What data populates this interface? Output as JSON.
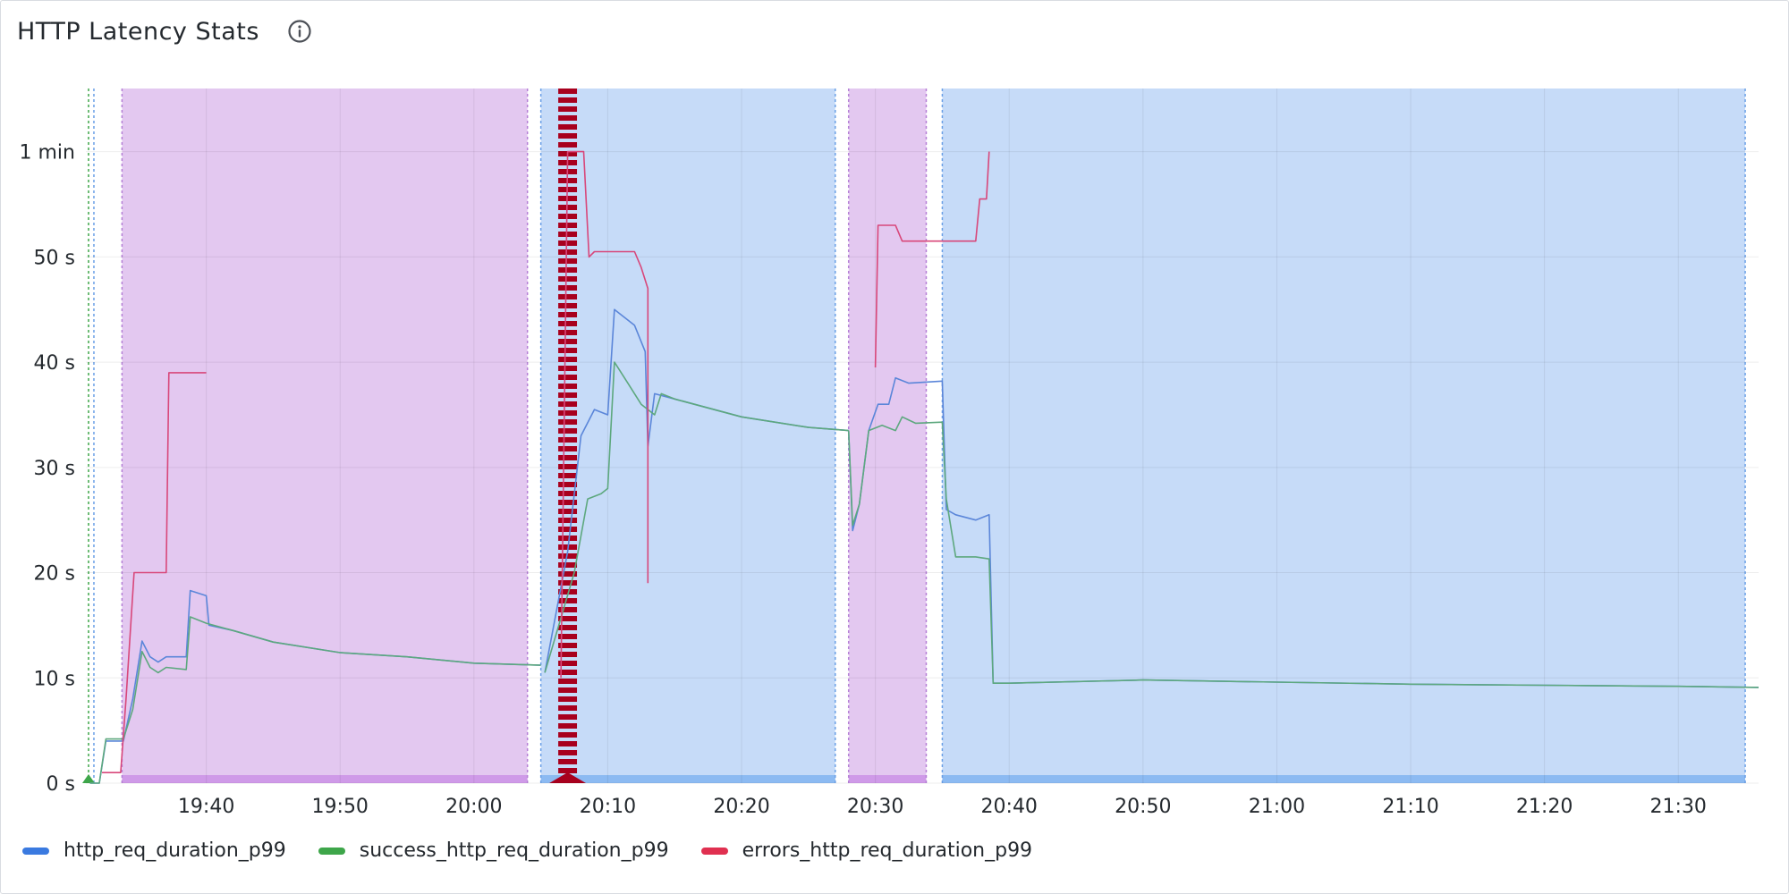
{
  "panel": {
    "title": "HTTP Latency Stats",
    "info_icon": "info-circle-icon"
  },
  "legend": [
    {
      "name": "http_req_duration_p99",
      "color": "#3a7ae0"
    },
    {
      "name": "success_http_req_duration_p99",
      "color": "#3ea64a"
    },
    {
      "name": "errors_http_req_duration_p99",
      "color": "#e03050"
    }
  ],
  "chart_data": {
    "type": "line",
    "title": "HTTP Latency Stats",
    "x_range": [
      "19:31",
      "21:36"
    ],
    "y_range_seconds": [
      0,
      66
    ],
    "x_ticks": [
      "19:40",
      "19:50",
      "20:00",
      "20:10",
      "20:20",
      "20:30",
      "20:40",
      "20:50",
      "21:00",
      "21:10",
      "21:20",
      "21:30"
    ],
    "y_ticks": [
      {
        "label": "0 s",
        "value": 0
      },
      {
        "label": "10 s",
        "value": 10
      },
      {
        "label": "20 s",
        "value": 20
      },
      {
        "label": "30 s",
        "value": 30
      },
      {
        "label": "40 s",
        "value": 40
      },
      {
        "label": "50 s",
        "value": 50
      },
      {
        "label": "1 min",
        "value": 60
      }
    ],
    "grid": true,
    "legend_position": "bottom-left",
    "regions": [
      {
        "kind": "test-run",
        "start": "19:33.7",
        "end": "20:04.0",
        "color": "#e3c8f0"
      },
      {
        "kind": "test-run",
        "start": "20:05.0",
        "end": "20:27.0",
        "color": "#c6dbf8"
      },
      {
        "kind": "test-run",
        "start": "20:28.0",
        "end": "20:33.8",
        "color": "#e3c8f0"
      },
      {
        "kind": "test-run",
        "start": "20:35.0",
        "end": "21:35.0",
        "color": "#c6dbf8"
      }
    ],
    "error_marker": {
      "start": "20:06.3",
      "end": "20:07.7",
      "color": "#a8001e"
    },
    "series": [
      {
        "name": "http_req_duration_p99",
        "color": "#3a7ae0",
        "segments": [
          [
            [
              "19:31.3",
              0
            ],
            [
              "19:32.0",
              0
            ],
            [
              "19:32.5",
              4
            ],
            [
              "19:33.8",
              4
            ],
            [
              "19:34.5",
              8
            ],
            [
              "19:35.2",
              13.5
            ],
            [
              "19:35.8",
              12
            ],
            [
              "19:36.4",
              11.5
            ],
            [
              "19:37.0",
              12
            ],
            [
              "19:38.5",
              12
            ],
            [
              "19:38.8",
              18.3
            ],
            [
              "19:40.0",
              17.8
            ],
            [
              "19:40.2",
              15
            ],
            [
              "19:42.0",
              14.5
            ],
            [
              "19:45.0",
              13.4
            ],
            [
              "19:50.0",
              12.4
            ],
            [
              "19:55.0",
              12
            ],
            [
              "20:00.0",
              11.4
            ],
            [
              "20:05.0",
              11.2
            ]
          ],
          [
            [
              "20:05.3",
              10.5
            ],
            [
              "20:07.0",
              22
            ],
            [
              "20:08.0",
              33
            ],
            [
              "20:09.0",
              35.5
            ],
            [
              "20:10.0",
              35
            ],
            [
              "20:10.5",
              45
            ],
            [
              "20:12.0",
              43.5
            ],
            [
              "20:12.8",
              41
            ],
            [
              "20:13.0",
              32
            ],
            [
              "20:13.5",
              37
            ],
            [
              "20:15.0",
              36.5
            ],
            [
              "20:20.0",
              34.8
            ],
            [
              "20:25.0",
              33.8
            ],
            [
              "20:28.0",
              33.5
            ]
          ],
          [
            [
              "20:28.0",
              33.5
            ],
            [
              "20:28.3",
              24
            ],
            [
              "20:28.8",
              26.5
            ],
            [
              "20:29.5",
              33.5
            ],
            [
              "20:30.2",
              36
            ],
            [
              "20:31.0",
              36
            ],
            [
              "20:31.5",
              38.5
            ],
            [
              "20:32.5",
              38
            ],
            [
              "20:35.0",
              38.2
            ],
            [
              "20:35.3",
              26
            ],
            [
              "20:36.0",
              25.5
            ],
            [
              "20:37.5",
              25
            ],
            [
              "20:38.5",
              25.5
            ],
            [
              "20:38.8",
              9.5
            ],
            [
              "20:40.0",
              9.5
            ],
            [
              "20:50.0",
              9.8
            ],
            [
              "21:00.0",
              9.6
            ],
            [
              "21:10.0",
              9.4
            ],
            [
              "21:20.0",
              9.3
            ],
            [
              "21:30.0",
              9.2
            ],
            [
              "21:36.0",
              9.1
            ]
          ]
        ]
      },
      {
        "name": "success_http_req_duration_p99",
        "color": "#3ea64a",
        "segments": [
          [
            [
              "19:31.3",
              0
            ],
            [
              "19:32.0",
              0
            ],
            [
              "19:32.5",
              4.2
            ],
            [
              "19:33.8",
              4.2
            ],
            [
              "19:34.5",
              7
            ],
            [
              "19:35.2",
              12.5
            ],
            [
              "19:35.8",
              11
            ],
            [
              "19:36.4",
              10.5
            ],
            [
              "19:37.0",
              11
            ],
            [
              "19:38.5",
              10.8
            ],
            [
              "19:38.8",
              15.8
            ],
            [
              "19:40.0",
              15.2
            ],
            [
              "19:42.0",
              14.5
            ],
            [
              "19:45.0",
              13.4
            ],
            [
              "19:50.0",
              12.4
            ],
            [
              "19:55.0",
              12
            ],
            [
              "20:00.0",
              11.4
            ],
            [
              "20:05.0",
              11.2
            ]
          ],
          [
            [
              "20:05.3",
              10.5
            ],
            [
              "20:07.5",
              20
            ],
            [
              "20:08.5",
              27
            ],
            [
              "20:09.5",
              27.5
            ],
            [
              "20:10.0",
              28
            ],
            [
              "20:10.5",
              40
            ],
            [
              "20:11.5",
              38
            ],
            [
              "20:12.5",
              36
            ],
            [
              "20:13.5",
              35
            ],
            [
              "20:14.0",
              37
            ],
            [
              "20:15.0",
              36.5
            ],
            [
              "20:20.0",
              34.8
            ],
            [
              "20:25.0",
              33.8
            ],
            [
              "20:28.0",
              33.5
            ]
          ],
          [
            [
              "20:28.0",
              33.5
            ],
            [
              "20:28.3",
              24.5
            ],
            [
              "20:28.8",
              26.5
            ],
            [
              "20:29.5",
              33.5
            ],
            [
              "20:30.5",
              34
            ],
            [
              "20:31.5",
              33.5
            ],
            [
              "20:32.0",
              34.8
            ],
            [
              "20:33.0",
              34.2
            ],
            [
              "20:35.0",
              34.3
            ],
            [
              "20:35.3",
              27
            ],
            [
              "20:36.0",
              21.5
            ],
            [
              "20:37.5",
              21.5
            ],
            [
              "20:38.5",
              21.3
            ],
            [
              "20:38.8",
              9.5
            ],
            [
              "20:40.0",
              9.5
            ],
            [
              "20:50.0",
              9.8
            ],
            [
              "21:00.0",
              9.6
            ],
            [
              "21:10.0",
              9.4
            ],
            [
              "21:20.0",
              9.3
            ],
            [
              "21:30.0",
              9.2
            ],
            [
              "21:36.0",
              9.1
            ]
          ]
        ]
      },
      {
        "name": "errors_http_req_duration_p99",
        "color": "#e03050",
        "segments": [
          [
            [
              "19:32.2",
              1
            ],
            [
              "19:33.6",
              1
            ],
            [
              "19:34.0",
              8
            ],
            [
              "19:34.6",
              20
            ],
            [
              "19:37.0",
              20
            ],
            [
              "19:37.2",
              39
            ],
            [
              "19:40.0",
              39
            ]
          ],
          [
            [
              "20:06.5",
              10
            ],
            [
              "20:07.0",
              60
            ],
            [
              "20:08.2",
              60
            ],
            [
              "20:08.6",
              50
            ],
            [
              "20:09.0",
              50.5
            ],
            [
              "20:12.0",
              50.5
            ],
            [
              "20:12.5",
              49
            ],
            [
              "20:13.0",
              47
            ],
            [
              "20:13.0",
              19
            ]
          ],
          [
            [
              "20:30.0",
              39.5
            ],
            [
              "20:30.2",
              53
            ],
            [
              "20:31.5",
              53
            ],
            [
              "20:32.0",
              51.5
            ],
            [
              "20:37.5",
              51.5
            ],
            [
              "20:37.8",
              55.5
            ],
            [
              "20:38.3",
              55.5
            ],
            [
              "20:38.5",
              60
            ]
          ]
        ]
      }
    ]
  }
}
